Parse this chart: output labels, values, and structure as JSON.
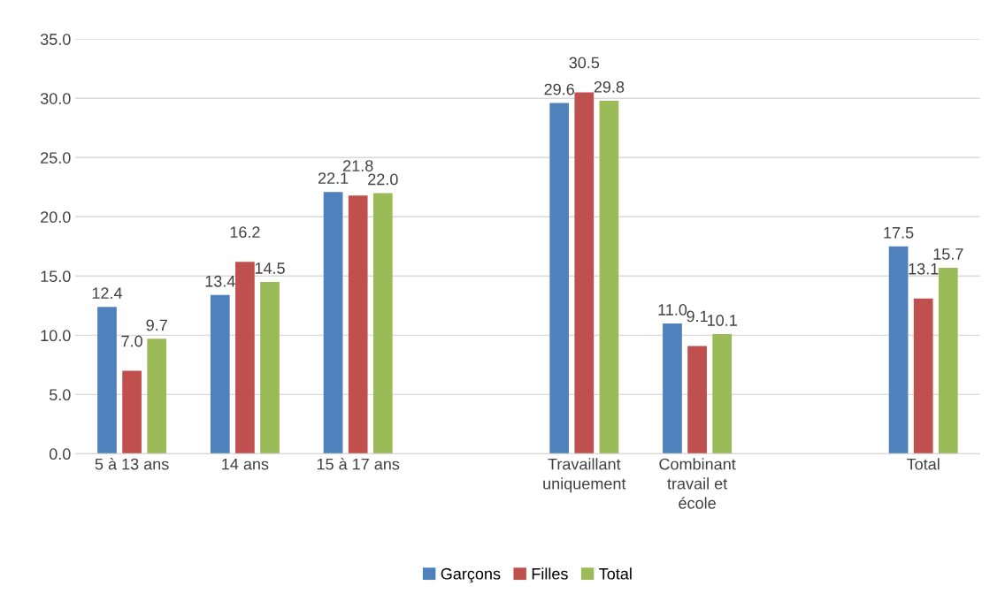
{
  "chart_data": {
    "type": "bar",
    "categories": [
      "5 à 13 ans",
      "14 ans",
      "15 à 17 ans",
      null,
      "Travaillant\nuniquement",
      "Combinant\ntravail et\nécole",
      null,
      "Total"
    ],
    "series": [
      {
        "name": "Garçons",
        "color": "#4f81bd",
        "values": [
          12.4,
          13.4,
          22.1,
          null,
          29.6,
          11.0,
          null,
          17.5
        ],
        "value_labels": [
          "12.4",
          "13.4",
          "22.1",
          null,
          "29.6",
          "11.0",
          null,
          "17.5"
        ]
      },
      {
        "name": "Filles",
        "color": "#c0504d",
        "values": [
          7.0,
          16.2,
          21.8,
          null,
          30.5,
          9.1,
          null,
          13.1
        ],
        "value_labels": [
          "7.0",
          "16.2",
          "21.8",
          null,
          "30.5",
          "9.1",
          null,
          "13.1"
        ]
      },
      {
        "name": "Total",
        "color": "#9bbb59",
        "values": [
          9.7,
          14.5,
          22.0,
          null,
          29.8,
          10.1,
          null,
          15.7
        ],
        "value_labels": [
          "9.7",
          "14.5",
          "22.0",
          null,
          "29.8",
          "10.1",
          null,
          "15.7"
        ]
      }
    ],
    "ylim": [
      0,
      35
    ],
    "yticks": [
      {
        "value": 0,
        "label": "0.0"
      },
      {
        "value": 5,
        "label": "5.0"
      },
      {
        "value": 10,
        "label": "10.0"
      },
      {
        "value": 15,
        "label": "15.0"
      },
      {
        "value": 20,
        "label": "20.0"
      },
      {
        "value": 25,
        "label": "25.0"
      },
      {
        "value": 30,
        "label": "30.0"
      },
      {
        "value": 35,
        "label": "35.0"
      }
    ],
    "grid": "y",
    "legend": "bottom"
  }
}
